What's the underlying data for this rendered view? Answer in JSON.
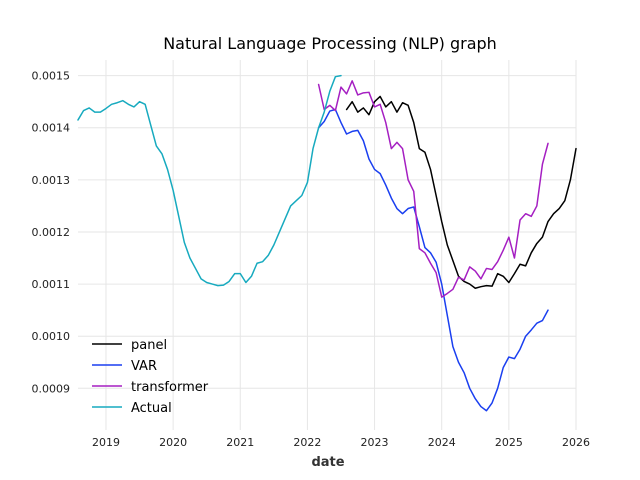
{
  "chart_data": {
    "type": "line",
    "title": "Natural Language Processing (NLP) graph",
    "xlabel": "date",
    "ylabel": "",
    "x_range": [
      "2018-08",
      "2026-01"
    ],
    "ylim": [
      0.00082,
      0.00153
    ],
    "grid": true,
    "legend_placement": "lower-left",
    "x_ticks": [
      "2019",
      "2020",
      "2021",
      "2022",
      "2023",
      "2024",
      "2025",
      "2026"
    ],
    "y_ticks": [
      "0.0009",
      "0.0010",
      "0.0011",
      "0.0012",
      "0.0013",
      "0.0014",
      "0.0015"
    ],
    "series": [
      {
        "name": "panel",
        "color": "#000000",
        "points": [
          [
            "2022-08",
            0.001435
          ],
          [
            "2022-09",
            0.00145
          ],
          [
            "2022-10",
            0.00143
          ],
          [
            "2022-11",
            0.001438
          ],
          [
            "2022-12",
            0.001425
          ],
          [
            "2023-01",
            0.00145
          ],
          [
            "2023-02",
            0.00146
          ],
          [
            "2023-03",
            0.00144
          ],
          [
            "2023-04",
            0.00145
          ],
          [
            "2023-05",
            0.00143
          ],
          [
            "2023-06",
            0.001448
          ],
          [
            "2023-07",
            0.001443
          ],
          [
            "2023-08",
            0.00141
          ],
          [
            "2023-09",
            0.00136
          ],
          [
            "2023-10",
            0.001353
          ],
          [
            "2023-11",
            0.00132
          ],
          [
            "2023-12",
            0.00127
          ],
          [
            "2024-01",
            0.00122
          ],
          [
            "2024-02",
            0.001175
          ],
          [
            "2024-03",
            0.001145
          ],
          [
            "2024-04",
            0.001115
          ],
          [
            "2024-05",
            0.001105
          ],
          [
            "2024-06",
            0.0011
          ],
          [
            "2024-07",
            0.001092
          ],
          [
            "2024-08",
            0.001095
          ],
          [
            "2024-09",
            0.001097
          ],
          [
            "2024-10",
            0.001096
          ],
          [
            "2024-11",
            0.00112
          ],
          [
            "2024-12",
            0.001115
          ],
          [
            "2025-01",
            0.001103
          ],
          [
            "2025-02",
            0.00112
          ],
          [
            "2025-03",
            0.001138
          ],
          [
            "2025-04",
            0.001135
          ],
          [
            "2025-05",
            0.00116
          ],
          [
            "2025-06",
            0.001178
          ],
          [
            "2025-07",
            0.00119
          ],
          [
            "2025-08",
            0.00122
          ],
          [
            "2025-09",
            0.001235
          ],
          [
            "2025-10",
            0.001245
          ],
          [
            "2025-11",
            0.00126
          ],
          [
            "2025-12",
            0.0013
          ],
          [
            "2026-01",
            0.00136
          ]
        ]
      },
      {
        "name": "VAR",
        "color": "#1a3ff0",
        "points": [
          [
            "2022-03",
            0.0014
          ],
          [
            "2022-04",
            0.001412
          ],
          [
            "2022-05",
            0.001432
          ],
          [
            "2022-06",
            0.001435
          ],
          [
            "2022-07",
            0.00141
          ],
          [
            "2022-08",
            0.001388
          ],
          [
            "2022-09",
            0.001393
          ],
          [
            "2022-10",
            0.001395
          ],
          [
            "2022-11",
            0.001375
          ],
          [
            "2022-12",
            0.00134
          ],
          [
            "2023-01",
            0.00132
          ],
          [
            "2023-02",
            0.001312
          ],
          [
            "2023-03",
            0.00129
          ],
          [
            "2023-04",
            0.001265
          ],
          [
            "2023-05",
            0.001245
          ],
          [
            "2023-06",
            0.001235
          ],
          [
            "2023-07",
            0.001245
          ],
          [
            "2023-08",
            0.001248
          ],
          [
            "2023-09",
            0.00121
          ],
          [
            "2023-10",
            0.00117
          ],
          [
            "2023-11",
            0.00116
          ],
          [
            "2023-12",
            0.001142
          ],
          [
            "2024-01",
            0.0011
          ],
          [
            "2024-02",
            0.00104
          ],
          [
            "2024-03",
            0.00098
          ],
          [
            "2024-04",
            0.00095
          ],
          [
            "2024-05",
            0.00093
          ],
          [
            "2024-06",
            0.0009
          ],
          [
            "2024-07",
            0.00088
          ],
          [
            "2024-08",
            0.000865
          ],
          [
            "2024-09",
            0.000857
          ],
          [
            "2024-10",
            0.000872
          ],
          [
            "2024-11",
            0.0009
          ],
          [
            "2024-12",
            0.00094
          ],
          [
            "2025-01",
            0.00096
          ],
          [
            "2025-02",
            0.000957
          ],
          [
            "2025-03",
            0.000975
          ],
          [
            "2025-04",
            0.001
          ],
          [
            "2025-05",
            0.001012
          ],
          [
            "2025-06",
            0.001025
          ],
          [
            "2025-07",
            0.00103
          ],
          [
            "2025-08",
            0.00105
          ]
        ]
      },
      {
        "name": "transformer",
        "color": "#a51fc2",
        "points": [
          [
            "2022-03",
            0.001483
          ],
          [
            "2022-04",
            0.001435
          ],
          [
            "2022-05",
            0.001443
          ],
          [
            "2022-06",
            0.001433
          ],
          [
            "2022-07",
            0.001478
          ],
          [
            "2022-08",
            0.001465
          ],
          [
            "2022-09",
            0.00149
          ],
          [
            "2022-10",
            0.001463
          ],
          [
            "2022-11",
            0.001467
          ],
          [
            "2022-12",
            0.001468
          ],
          [
            "2023-01",
            0.00144
          ],
          [
            "2023-02",
            0.001445
          ],
          [
            "2023-03",
            0.00141
          ],
          [
            "2023-04",
            0.00136
          ],
          [
            "2023-05",
            0.001372
          ],
          [
            "2023-06",
            0.00136
          ],
          [
            "2023-07",
            0.0013
          ],
          [
            "2023-08",
            0.001278
          ],
          [
            "2023-09",
            0.001168
          ],
          [
            "2023-10",
            0.00116
          ],
          [
            "2023-11",
            0.00114
          ],
          [
            "2023-12",
            0.001122
          ],
          [
            "2024-01",
            0.001075
          ],
          [
            "2024-02",
            0.001082
          ],
          [
            "2024-03",
            0.00109
          ],
          [
            "2024-04",
            0.001113
          ],
          [
            "2024-05",
            0.001108
          ],
          [
            "2024-06",
            0.001133
          ],
          [
            "2024-07",
            0.001125
          ],
          [
            "2024-08",
            0.00111
          ],
          [
            "2024-09",
            0.00113
          ],
          [
            "2024-10",
            0.001128
          ],
          [
            "2024-11",
            0.001143
          ],
          [
            "2024-12",
            0.001165
          ],
          [
            "2025-01",
            0.00119
          ],
          [
            "2025-02",
            0.00115
          ],
          [
            "2025-03",
            0.001223
          ],
          [
            "2025-04",
            0.001235
          ],
          [
            "2025-05",
            0.00123
          ],
          [
            "2025-06",
            0.00125
          ],
          [
            "2025-07",
            0.00133
          ],
          [
            "2025-08",
            0.00137
          ]
        ]
      },
      {
        "name": "Actual",
        "color": "#17aabf",
        "points": [
          [
            "2018-08",
            0.001415
          ],
          [
            "2018-09",
            0.001433
          ],
          [
            "2018-10",
            0.001438
          ],
          [
            "2018-11",
            0.00143
          ],
          [
            "2018-12",
            0.00143
          ],
          [
            "2019-01",
            0.001437
          ],
          [
            "2019-02",
            0.001445
          ],
          [
            "2019-03",
            0.001448
          ],
          [
            "2019-04",
            0.001452
          ],
          [
            "2019-05",
            0.001445
          ],
          [
            "2019-06",
            0.00144
          ],
          [
            "2019-07",
            0.00145
          ],
          [
            "2019-08",
            0.001445
          ],
          [
            "2019-09",
            0.001405
          ],
          [
            "2019-10",
            0.001365
          ],
          [
            "2019-11",
            0.00135
          ],
          [
            "2019-12",
            0.00132
          ],
          [
            "2020-01",
            0.00128
          ],
          [
            "2020-02",
            0.00123
          ],
          [
            "2020-03",
            0.00118
          ],
          [
            "2020-04",
            0.00115
          ],
          [
            "2020-05",
            0.00113
          ],
          [
            "2020-06",
            0.00111
          ],
          [
            "2020-07",
            0.001103
          ],
          [
            "2020-08",
            0.0011
          ],
          [
            "2020-09",
            0.001097
          ],
          [
            "2020-10",
            0.001098
          ],
          [
            "2020-11",
            0.001105
          ],
          [
            "2020-12",
            0.00112
          ],
          [
            "2021-01",
            0.00112
          ],
          [
            "2021-02",
            0.001103
          ],
          [
            "2021-03",
            0.001115
          ],
          [
            "2021-04",
            0.00114
          ],
          [
            "2021-05",
            0.001143
          ],
          [
            "2021-06",
            0.001155
          ],
          [
            "2021-07",
            0.001175
          ],
          [
            "2021-08",
            0.0012
          ],
          [
            "2021-09",
            0.001225
          ],
          [
            "2021-10",
            0.00125
          ],
          [
            "2021-11",
            0.00126
          ],
          [
            "2021-12",
            0.00127
          ],
          [
            "2022-01",
            0.001295
          ],
          [
            "2022-02",
            0.00136
          ],
          [
            "2022-03",
            0.0014
          ],
          [
            "2022-04",
            0.00143
          ],
          [
            "2022-05",
            0.00147
          ],
          [
            "2022-06",
            0.001498
          ],
          [
            "2022-07",
            0.0015
          ]
        ]
      }
    ]
  }
}
